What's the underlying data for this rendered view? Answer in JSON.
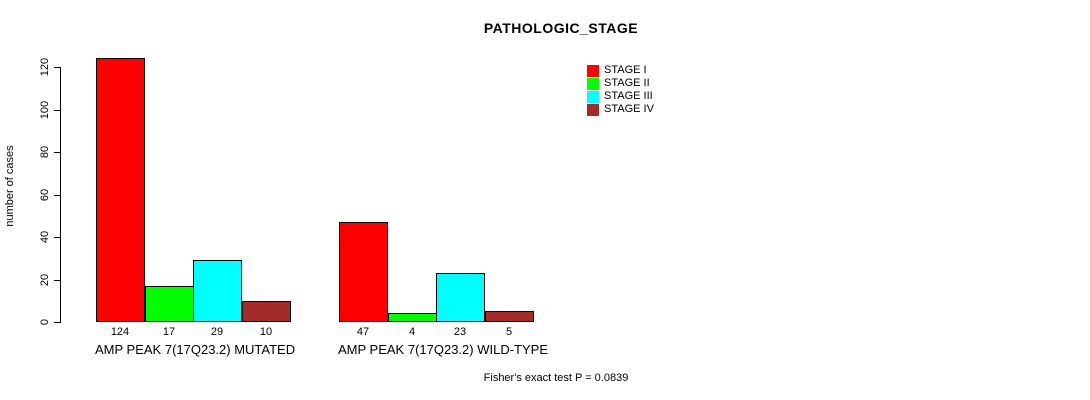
{
  "legend": [
    {
      "label": "STAGE I",
      "color": "#FF0000"
    },
    {
      "label": "STAGE II",
      "color": "#00FF00"
    },
    {
      "label": "STAGE III",
      "color": "#00FFFF"
    },
    {
      "label": "STAGE IV",
      "color": "#A52A2A"
    }
  ],
  "chart_data": {
    "type": "bar",
    "title": "PATHOLOGIC_STAGE",
    "xlabel": "",
    "ylabel": "number of cases",
    "ylim": [
      0,
      120
    ],
    "yticks": [
      0,
      20,
      40,
      60,
      80,
      100,
      120
    ],
    "grid": false,
    "legend_position": "top-right",
    "categories": [
      "STAGE I",
      "STAGE II",
      "STAGE III",
      "STAGE IV"
    ],
    "colors": [
      "#FF0000",
      "#00FF00",
      "#00FFFF",
      "#A52A2A"
    ],
    "groups": [
      {
        "label": "AMP PEAK 7(17Q23.2) MUTATED",
        "values": [
          124,
          17,
          29,
          10
        ]
      },
      {
        "label": "AMP PEAK 7(17Q23.2) WILD-TYPE",
        "values": [
          47,
          4,
          23,
          5
        ]
      }
    ],
    "annotation": "Fisher's exact test P = 0.0839"
  }
}
